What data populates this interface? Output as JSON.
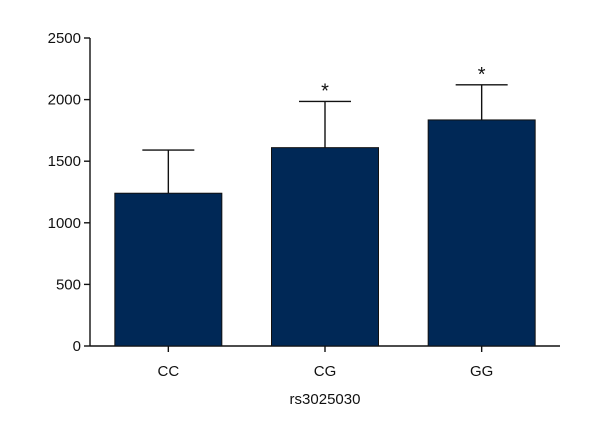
{
  "chart_data": {
    "type": "bar",
    "title": "",
    "xlabel": "rs3025030",
    "ylabel": "",
    "categories": [
      "CC",
      "CG",
      "GG"
    ],
    "values": [
      1240,
      1610,
      1835
    ],
    "error_upper": [
      1590,
      1985,
      2120
    ],
    "significance": [
      "",
      "*",
      "*"
    ],
    "ylim": [
      0,
      2500
    ],
    "yticks": [
      0,
      500,
      1000,
      1500,
      2000,
      2500
    ],
    "ytick_labels": [
      "0",
      "500",
      "1000",
      "1500",
      "2000",
      "2500"
    ],
    "grid": false,
    "legend": "none",
    "bar_color": "#002856"
  }
}
